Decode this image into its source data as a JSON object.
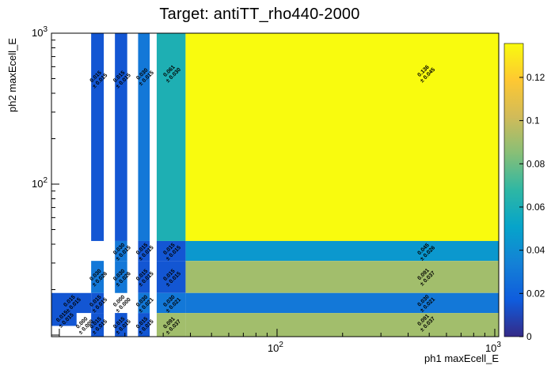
{
  "chart_data": {
    "type": "heatmap",
    "title": "Target: antiTT_rho440-2000",
    "xlabel": "ph1 maxEcell_E",
    "ylabel": "ph2 maxEcell_E",
    "xscale": "log",
    "yscale": "log",
    "xlim": [
      9.2,
      1043
    ],
    "ylim": [
      9.76,
      1000
    ],
    "x_major_ticks": [
      {
        "value": 100,
        "base": "10",
        "exp": "2"
      },
      {
        "value": 1000,
        "base": "10",
        "exp": "3"
      }
    ],
    "y_major_ticks": [
      {
        "value": 100,
        "base": "10",
        "exp": "2"
      },
      {
        "value": 1000,
        "base": "10",
        "exp": "3"
      }
    ],
    "colorbar": {
      "min": 0,
      "max": 0.1357,
      "ticks": [
        0,
        0.02,
        0.04,
        0.06,
        0.08,
        0.1,
        0.12
      ],
      "palette": [
        "#352a87",
        "#0f5cdd",
        "#1481d6",
        "#06a4ca",
        "#2eb7a4",
        "#87bf77",
        "#d1bb59",
        "#fec832",
        "#f9fb0e"
      ]
    },
    "cells": [
      {
        "x": [
          14,
          16
        ],
        "y": [
          42,
          1000
        ],
        "v": 0.015,
        "e": 0.015,
        "la": [
          15,
          500
        ]
      },
      {
        "x": [
          18,
          20.5
        ],
        "y": [
          42,
          1000
        ],
        "v": 0.015,
        "e": 0.015,
        "la": [
          19.2,
          500
        ]
      },
      {
        "x": [
          23,
          26
        ],
        "y": [
          42,
          1000
        ],
        "v": 0.03,
        "e": 0.015,
        "la": [
          24.5,
          520
        ]
      },
      {
        "x": [
          28,
          38
        ],
        "y": [
          42,
          1000
        ],
        "v": 0.061,
        "e": 0.03,
        "la": [
          32.6,
          545
        ]
      },
      {
        "x": [
          38,
          1043
        ],
        "y": [
          42,
          1000
        ],
        "v": 0.136,
        "e": 0.045,
        "la": [
          480,
          545
        ]
      },
      {
        "x": [
          38,
          1043
        ],
        "y": [
          31,
          42
        ],
        "v": 0.045,
        "e": 0.026,
        "la": [
          480,
          36
        ]
      },
      {
        "x": [
          38,
          1043
        ],
        "y": [
          19,
          31
        ],
        "v": 0.091,
        "e": 0.037,
        "la": [
          480,
          24.5
        ]
      },
      {
        "x": [
          38,
          1043
        ],
        "y": [
          14,
          19
        ],
        "v": 0.03,
        "e": 0.021,
        "la": [
          480,
          16.4
        ]
      },
      {
        "x": [
          38,
          1043
        ],
        "y": [
          9.76,
          14
        ],
        "v": 0.091,
        "e": 0.037,
        "la": [
          480,
          12.2
        ]
      },
      {
        "x": [
          9.2,
          14
        ],
        "y": [
          14,
          19
        ],
        "v": 0.015,
        "e": 0.015
      },
      {
        "x": [
          9.2,
          12
        ],
        "y": [
          11.5,
          14.5
        ],
        "v": 0.015,
        "e": 0.015
      },
      {
        "x": [
          12,
          14
        ],
        "y": [
          9.76,
          14
        ],
        "v": 0,
        "e": 0
      },
      {
        "x": [
          14,
          16
        ],
        "y": [
          19,
          31
        ],
        "v": 0.03,
        "e": 0.026
      },
      {
        "x": [
          14,
          16
        ],
        "y": [
          14,
          19
        ],
        "v": 0.015,
        "e": 0.015
      },
      {
        "x": [
          14,
          16
        ],
        "y": [
          9.76,
          14
        ],
        "v": 0.015,
        "e": 0.015
      },
      {
        "x": [
          18,
          20.5
        ],
        "y": [
          31,
          42
        ],
        "v": 0.03,
        "e": 0.015
      },
      {
        "x": [
          18,
          20.5
        ],
        "y": [
          19,
          31
        ],
        "v": 0.03,
        "e": 0.026
      },
      {
        "x": [
          18,
          20.5
        ],
        "y": [
          14,
          19
        ],
        "v": 0,
        "e": 0
      },
      {
        "x": [
          18,
          20.5
        ],
        "y": [
          9.76,
          14
        ],
        "v": 0.015,
        "e": 0.015
      },
      {
        "x": [
          23,
          26
        ],
        "y": [
          31,
          42
        ],
        "v": 0.015,
        "e": 0.015
      },
      {
        "x": [
          23,
          26
        ],
        "y": [
          19,
          31
        ],
        "v": 0.015,
        "e": 0.015
      },
      {
        "x": [
          23,
          26
        ],
        "y": [
          14,
          19
        ],
        "v": 0.03,
        "e": 0.021
      },
      {
        "x": [
          23,
          26
        ],
        "y": [
          9.76,
          14
        ],
        "v": 0.015,
        "e": 0.015
      },
      {
        "x": [
          28,
          38
        ],
        "y": [
          31,
          42
        ],
        "v": 0.015,
        "e": 0.015
      },
      {
        "x": [
          28,
          38
        ],
        "y": [
          19,
          31
        ],
        "v": 0.015,
        "e": 0.015
      },
      {
        "x": [
          28,
          38
        ],
        "y": [
          14,
          19
        ],
        "v": 0.03,
        "e": 0.021
      },
      {
        "x": [
          28,
          38
        ],
        "y": [
          9.76,
          14
        ],
        "v": 0.091,
        "e": 0.037
      }
    ]
  }
}
